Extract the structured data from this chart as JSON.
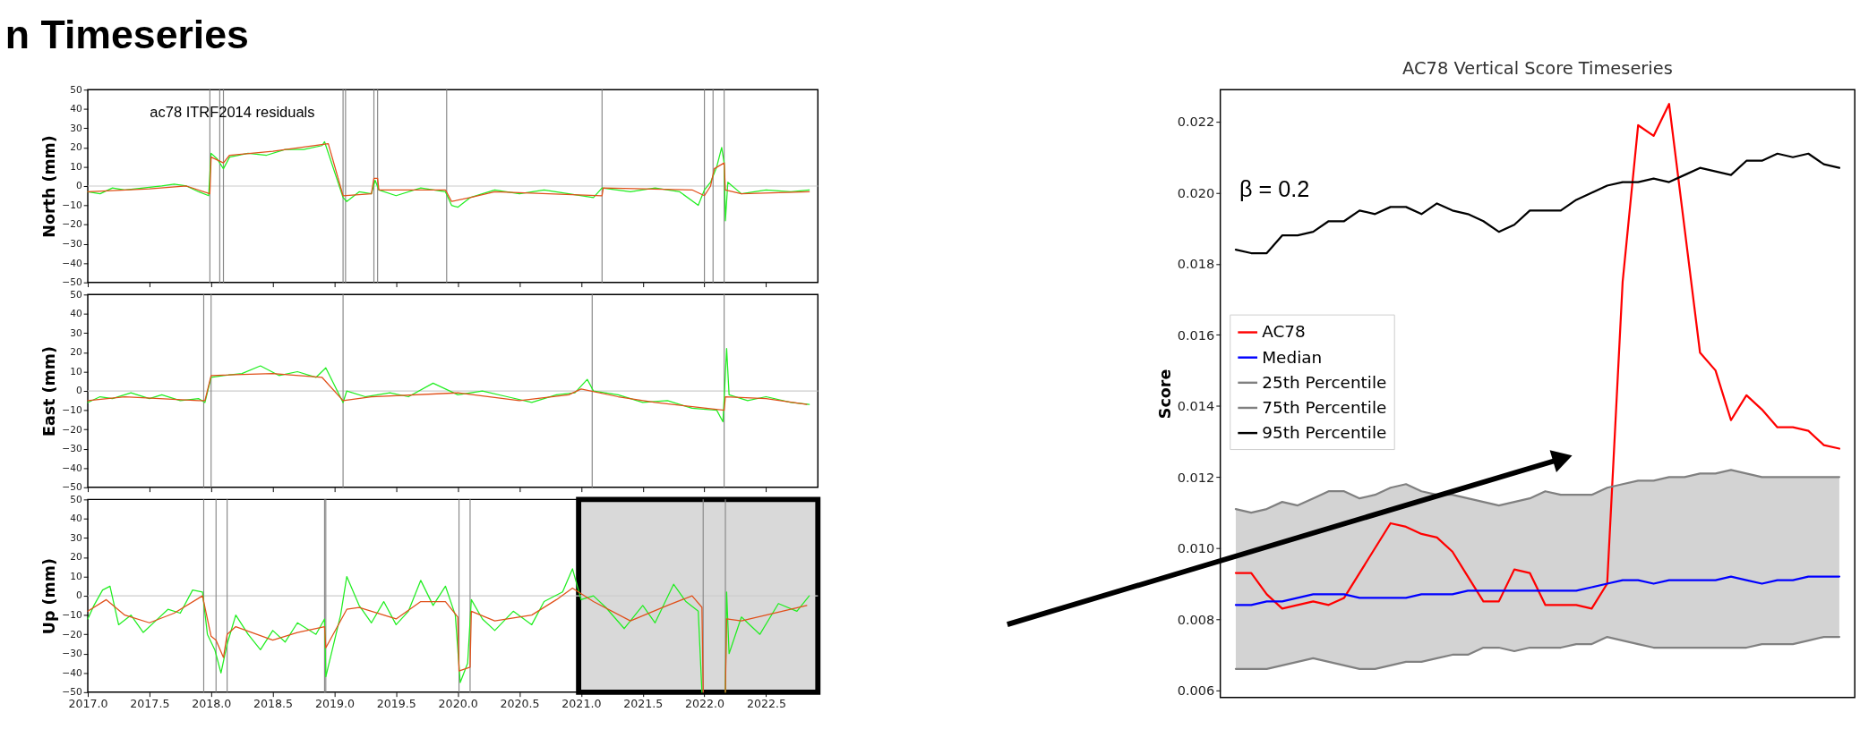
{
  "chart_data": [
    {
      "type": "line",
      "ylabel": "North (mm)",
      "annotations": [
        "n Timeseries",
        "ac78  ITRF2014 residuals"
      ],
      "xlim": [
        2017.0,
        2022.92
      ],
      "xticks": [
        {
          "value": 2017.0,
          "label": null
        },
        {
          "value": 2017.5,
          "label": null
        },
        {
          "value": 2018.0,
          "label": null
        },
        {
          "value": 2018.5,
          "label": null
        },
        {
          "value": 2019.0,
          "label": null
        },
        {
          "value": 2019.5,
          "label": null
        },
        {
          "value": 2020.0,
          "label": null
        },
        {
          "value": 2020.5,
          "label": null
        },
        {
          "value": 2021.0,
          "label": null
        },
        {
          "value": 2021.5,
          "label": null
        },
        {
          "value": 2022.0,
          "label": null
        },
        {
          "value": 2022.5,
          "label": null
        }
      ],
      "ylim": [
        -50,
        50
      ],
      "yticks": [
        -50,
        -40,
        -30,
        -20,
        -10,
        0,
        10,
        20,
        30,
        40,
        50
      ],
      "tick_labels": "y",
      "grid": false,
      "legend": false,
      "line_style": "solid",
      "marker": "none",
      "ref_lines": [
        {
          "axis": "y",
          "value": 0,
          "color": "#cccccc"
        },
        {
          "axis": "x",
          "value": 2017.99,
          "color": "#888888"
        },
        {
          "axis": "x",
          "value": 2018.07,
          "color": "#888888"
        },
        {
          "axis": "x",
          "value": 2018.1,
          "color": "#888888"
        },
        {
          "axis": "x",
          "value": 2019.07,
          "color": "#888888"
        },
        {
          "axis": "x",
          "value": 2019.09,
          "color": "#888888"
        },
        {
          "axis": "x",
          "value": 2019.32,
          "color": "#888888"
        },
        {
          "axis": "x",
          "value": 2019.35,
          "color": "#888888"
        },
        {
          "axis": "x",
          "value": 2019.91,
          "color": "#888888"
        },
        {
          "axis": "x",
          "value": 2021.17,
          "color": "#888888"
        },
        {
          "axis": "x",
          "value": 2022.0,
          "color": "#888888"
        },
        {
          "axis": "x",
          "value": 2022.07,
          "color": "#888888"
        },
        {
          "axis": "x",
          "value": 2022.16,
          "color": "#888888"
        }
      ],
      "series": [
        {
          "color": "#22ee22",
          "x": [
            2017.0,
            2017.1,
            2017.2,
            2017.3,
            2017.45,
            2017.6,
            2017.7,
            2017.8,
            2017.9,
            2017.98,
            2018.0,
            2018.05,
            2018.1,
            2018.15,
            2018.3,
            2018.45,
            2018.6,
            2018.75,
            2018.9,
            2018.92,
            2019.07,
            2019.1,
            2019.2,
            2019.3,
            2019.33,
            2019.36,
            2019.5,
            2019.7,
            2019.9,
            2019.95,
            2020.0,
            2020.1,
            2020.3,
            2020.5,
            2020.7,
            2020.9,
            2021.1,
            2021.17,
            2021.4,
            2021.6,
            2021.8,
            2021.95,
            2022.0,
            2022.05,
            2022.1,
            2022.14,
            2022.16,
            2022.17,
            2022.19,
            2022.3,
            2022.5,
            2022.7,
            2022.85
          ],
          "values": [
            -3,
            -4,
            -1,
            -2,
            -1,
            0,
            1,
            0,
            -3,
            -5,
            17,
            14,
            9,
            15,
            17,
            16,
            19,
            19,
            21,
            23,
            -6,
            -8,
            -3,
            -4,
            3,
            -2,
            -5,
            -1,
            -3,
            -10,
            -11,
            -6,
            -2,
            -4,
            -2,
            -4,
            -6,
            -1,
            -3,
            -1,
            -3,
            -10,
            -2,
            2,
            10,
            20,
            12,
            -18,
            2,
            -4,
            -2,
            -3,
            -2
          ]
        },
        {
          "color": "#e0501a",
          "x": [
            2017.0,
            2017.5,
            2017.8,
            2017.99,
            2018.0,
            2018.1,
            2018.15,
            2018.5,
            2018.95,
            2019.07,
            2019.3,
            2019.32,
            2019.35,
            2019.36,
            2019.9,
            2019.95,
            2020.1,
            2020.3,
            2021.17,
            2021.18,
            2021.9,
            2022.0,
            2022.05,
            2022.08,
            2022.16,
            2022.17,
            2022.3,
            2022.85
          ],
          "values": [
            -3,
            -1.5,
            0,
            -4,
            15,
            12,
            16,
            18,
            22,
            -5,
            -4,
            4,
            4,
            -2,
            -2,
            -8,
            -6,
            -3,
            -5,
            -1,
            -2,
            -5,
            0,
            9,
            12,
            -2,
            -4,
            -3
          ]
        }
      ]
    },
    {
      "type": "line",
      "ylabel": "East (mm)",
      "xlim": [
        2017.0,
        2022.92
      ],
      "xticks": [
        {
          "value": 2017.0,
          "label": null
        },
        {
          "value": 2017.5,
          "label": null
        },
        {
          "value": 2018.0,
          "label": null
        },
        {
          "value": 2018.5,
          "label": null
        },
        {
          "value": 2019.0,
          "label": null
        },
        {
          "value": 2019.5,
          "label": null
        },
        {
          "value": 2020.0,
          "label": null
        },
        {
          "value": 2020.5,
          "label": null
        },
        {
          "value": 2021.0,
          "label": null
        },
        {
          "value": 2021.5,
          "label": null
        },
        {
          "value": 2022.0,
          "label": null
        },
        {
          "value": 2022.5,
          "label": null
        }
      ],
      "ylim": [
        -50,
        50
      ],
      "yticks": [
        -50,
        -40,
        -30,
        -20,
        -10,
        0,
        10,
        20,
        30,
        40,
        50
      ],
      "tick_labels": "y",
      "grid": false,
      "legend": false,
      "line_style": "solid",
      "marker": "none",
      "ref_lines": [
        {
          "axis": "y",
          "value": 0,
          "color": "#cccccc"
        },
        {
          "axis": "x",
          "value": 2017.94,
          "color": "#888888"
        },
        {
          "axis": "x",
          "value": 2018.0,
          "color": "#888888"
        },
        {
          "axis": "x",
          "value": 2019.07,
          "color": "#888888"
        },
        {
          "axis": "x",
          "value": 2021.09,
          "color": "#888888"
        },
        {
          "axis": "x",
          "value": 2022.16,
          "color": "#888888"
        }
      ],
      "series": [
        {
          "color": "#22ee22",
          "x": [
            2017.0,
            2017.1,
            2017.2,
            2017.35,
            2017.5,
            2017.6,
            2017.75,
            2017.9,
            2017.95,
            2018.0,
            2018.1,
            2018.25,
            2018.4,
            2018.55,
            2018.7,
            2018.85,
            2018.93,
            2019.07,
            2019.1,
            2019.25,
            2019.45,
            2019.6,
            2019.8,
            2020.0,
            2020.2,
            2020.4,
            2020.6,
            2020.8,
            2020.95,
            2021.05,
            2021.1,
            2021.3,
            2021.5,
            2021.7,
            2021.9,
            2022.1,
            2022.15,
            2022.16,
            2022.18,
            2022.2,
            2022.35,
            2022.5,
            2022.7,
            2022.85
          ],
          "values": [
            -6,
            -3,
            -4,
            -1,
            -4,
            -2,
            -5,
            -4,
            -6,
            7,
            8,
            9,
            13,
            8,
            10,
            7,
            12,
            -6,
            0,
            -3,
            -1,
            -3,
            4,
            -2,
            0,
            -3,
            -6,
            -2,
            -1,
            6,
            0,
            -2,
            -6,
            -5,
            -9,
            -10,
            -16,
            -4,
            22,
            -2,
            -5,
            -3,
            -6,
            -7
          ]
        },
        {
          "color": "#e0501a",
          "x": [
            2017.0,
            2017.3,
            2017.9,
            2017.95,
            2018.0,
            2018.5,
            2018.9,
            2019.07,
            2019.3,
            2020.0,
            2020.5,
            2020.9,
            2021.0,
            2021.3,
            2021.6,
            2022.16,
            2022.17,
            2022.5,
            2022.83
          ],
          "values": [
            -5,
            -3,
            -5,
            -5,
            8,
            9,
            7,
            -5,
            -3,
            -1,
            -5,
            -2,
            1,
            -3,
            -6,
            -10,
            -3,
            -4,
            -7
          ]
        }
      ]
    },
    {
      "type": "line",
      "ylabel": "Up (mm)",
      "xlim": [
        2017.0,
        2022.92
      ],
      "xticks": [
        {
          "value": 2017.0,
          "label": "2017.0"
        },
        {
          "value": 2017.5,
          "label": "2017.5"
        },
        {
          "value": 2018.0,
          "label": "2018.0"
        },
        {
          "value": 2018.5,
          "label": "2018.5"
        },
        {
          "value": 2019.0,
          "label": "2019.0"
        },
        {
          "value": 2019.5,
          "label": "2019.5"
        },
        {
          "value": 2020.0,
          "label": "2020.0"
        },
        {
          "value": 2020.5,
          "label": "2020.5"
        },
        {
          "value": 2021.0,
          "label": "2021.0"
        },
        {
          "value": 2021.5,
          "label": "2021.5"
        },
        {
          "value": 2022.0,
          "label": "2022.0"
        },
        {
          "value": 2022.5,
          "label": "2022.5"
        }
      ],
      "ylim": [
        -50,
        50
      ],
      "yticks": [
        -50,
        -40,
        -30,
        -20,
        -10,
        0,
        10,
        20,
        30,
        40,
        50
      ],
      "grid": false,
      "legend": false,
      "line_style": "solid",
      "marker": "none",
      "bands": [
        {
          "axis": "x",
          "from": 2020.98,
          "to": 2022.92,
          "color": "#d9d9d9"
        }
      ],
      "ref_lines": [
        {
          "axis": "y",
          "value": 0,
          "color": "#cccccc"
        },
        {
          "axis": "x",
          "value": 2017.94,
          "color": "#888888"
        },
        {
          "axis": "x",
          "value": 2018.04,
          "color": "#888888"
        },
        {
          "axis": "x",
          "value": 2018.13,
          "color": "#888888"
        },
        {
          "axis": "x",
          "value": 2018.92,
          "color": "#888888"
        },
        {
          "axis": "x",
          "value": 2018.93,
          "color": "#888888"
        },
        {
          "axis": "x",
          "value": 2020.01,
          "color": "#888888"
        },
        {
          "axis": "x",
          "value": 2020.1,
          "color": "#888888"
        },
        {
          "axis": "x",
          "value": 2021.99,
          "color": "#888888"
        },
        {
          "axis": "x",
          "value": 2022.17,
          "color": "#888888"
        }
      ],
      "series": [
        {
          "color": "#22ee22",
          "x": [
            2017.0,
            2017.05,
            2017.12,
            2017.18,
            2017.25,
            2017.35,
            2017.45,
            2017.55,
            2017.65,
            2017.75,
            2017.85,
            2017.93,
            2017.97,
            2018.03,
            2018.08,
            2018.13,
            2018.2,
            2018.3,
            2018.4,
            2018.5,
            2018.6,
            2018.7,
            2018.85,
            2018.92,
            2018.93,
            2019.05,
            2019.1,
            2019.2,
            2019.3,
            2019.4,
            2019.5,
            2019.6,
            2019.7,
            2019.8,
            2019.9,
            2019.98,
            2020.02,
            2020.08,
            2020.11,
            2020.2,
            2020.3,
            2020.45,
            2020.6,
            2020.7,
            2020.85,
            2020.93,
            2021.0,
            2021.1,
            2021.2,
            2021.35,
            2021.5,
            2021.6,
            2021.75,
            2021.85,
            2021.95,
            2021.98,
            2022.07,
            2022.17,
            2022.18,
            2022.2,
            2022.3,
            2022.45,
            2022.6,
            2022.75,
            2022.85
          ],
          "values": [
            -12,
            -5,
            3,
            5,
            -15,
            -10,
            -19,
            -13,
            -7,
            -9,
            3,
            2,
            -20,
            -28,
            -40,
            -25,
            -10,
            -20,
            -28,
            -18,
            -24,
            -14,
            -20,
            -12,
            -42,
            -10,
            10,
            -5,
            -14,
            -3,
            -15,
            -8,
            8,
            -5,
            5,
            -10,
            -45,
            -35,
            -2,
            -12,
            -18,
            -8,
            -15,
            -3,
            2,
            14,
            -2,
            0,
            -6,
            -17,
            -5,
            -14,
            6,
            -3,
            -8,
            -50,
            null,
            -50,
            2,
            -30,
            -11,
            -20,
            -4,
            -8,
            0
          ]
        },
        {
          "color": "#e0501a",
          "x": [
            2017.0,
            2017.15,
            2017.3,
            2017.5,
            2017.7,
            2017.93,
            2018.0,
            2018.04,
            2018.1,
            2018.13,
            2018.2,
            2018.5,
            2018.7,
            2018.92,
            2018.93,
            2019.1,
            2019.2,
            2019.5,
            2019.7,
            2019.9,
            2020.0,
            2020.01,
            2020.1,
            2020.11,
            2020.3,
            2020.6,
            2020.8,
            2020.93,
            2021.1,
            2021.4,
            2021.7,
            2021.9,
            2021.98,
            2021.99,
            2022.08,
            2022.17,
            2022.18,
            2022.3,
            2022.5,
            2022.83
          ],
          "values": [
            -8,
            -2,
            -10,
            -14,
            -9,
            0,
            -21,
            -23,
            -32,
            -20,
            -16,
            -23,
            -19,
            -16,
            -27,
            -7,
            -6,
            -12,
            -3,
            -3,
            -11,
            -39,
            -37,
            -8,
            -13,
            -10,
            -2,
            4,
            -3,
            -13,
            -5,
            0,
            -6,
            -50,
            null,
            -50,
            -12,
            -13,
            -10,
            -5
          ]
        }
      ]
    },
    {
      "type": "line",
      "title": "AC78 Vertical Score Timeseries",
      "ylabel": "Score",
      "annotations": [
        "β = 0.2"
      ],
      "categories": [
        null,
        null,
        null,
        null,
        null,
        null,
        null,
        null,
        null,
        null,
        null,
        null,
        null,
        null,
        null,
        null,
        null,
        null,
        null,
        null,
        null,
        null,
        null,
        null,
        null,
        null,
        null,
        null,
        null,
        null,
        null,
        null,
        null,
        null,
        null,
        null,
        null,
        null,
        null,
        null
      ],
      "ylim": [
        0.0058,
        0.0229
      ],
      "yticks": [
        0.006,
        0.008,
        {
          "value": 0.01,
          "label": "0.010"
        },
        0.012,
        0.014,
        0.016,
        0.018,
        {
          "value": 0.02,
          "label": "0.020"
        },
        0.022
      ],
      "tick_labels": "y",
      "grid": false,
      "legend": "left",
      "line_style": "solid",
      "marker": "none",
      "series": [
        {
          "name": "AC78",
          "color": "#ff0000",
          "values": [
            0.0093,
            0.0093,
            0.0087,
            0.0083,
            0.0084,
            0.0085,
            0.0084,
            0.0086,
            0.0093,
            0.01,
            0.0107,
            0.0106,
            0.0104,
            0.0103,
            0.0099,
            0.0092,
            0.0085,
            0.0085,
            0.0094,
            0.0093,
            0.0084,
            0.0084,
            0.0084,
            0.0083,
            0.009,
            0.0175,
            0.0219,
            0.0216,
            0.0225,
            0.019,
            0.0155,
            0.015,
            0.0136,
            0.0143,
            0.0139,
            0.0134,
            0.0134,
            0.0133,
            0.0129,
            0.0128
          ]
        },
        {
          "name": "Median",
          "color": "#0000ff",
          "values": [
            0.0084,
            0.0084,
            0.0085,
            0.0085,
            0.0086,
            0.0087,
            0.0087,
            0.0087,
            0.0086,
            0.0086,
            0.0086,
            0.0086,
            0.0087,
            0.0087,
            0.0087,
            0.0088,
            0.0088,
            0.0088,
            0.0088,
            0.0088,
            0.0088,
            0.0088,
            0.0088,
            0.0089,
            0.009,
            0.0091,
            0.0091,
            0.009,
            0.0091,
            0.0091,
            0.0091,
            0.0091,
            0.0092,
            0.0091,
            0.009,
            0.0091,
            0.0091,
            0.0092,
            0.0092,
            0.0092
          ],
          "lower": [
            0.0066,
            0.0066,
            0.0066,
            0.0067,
            0.0068,
            0.0069,
            0.0068,
            0.0067,
            0.0066,
            0.0066,
            0.0067,
            0.0068,
            0.0068,
            0.0069,
            0.007,
            0.007,
            0.0072,
            0.0072,
            0.0071,
            0.0072,
            0.0072,
            0.0072,
            0.0073,
            0.0073,
            0.0075,
            0.0074,
            0.0073,
            0.0072,
            0.0072,
            0.0072,
            0.0072,
            0.0072,
            0.0072,
            0.0072,
            0.0073,
            0.0073,
            0.0073,
            0.0074,
            0.0075,
            0.0075
          ],
          "upper": [
            0.0111,
            0.011,
            0.0111,
            0.0113,
            0.0112,
            0.0114,
            0.0116,
            0.0116,
            0.0114,
            0.0115,
            0.0117,
            0.0118,
            0.0116,
            0.0115,
            0.0115,
            0.0114,
            0.0113,
            0.0112,
            0.0113,
            0.0114,
            0.0116,
            0.0115,
            0.0115,
            0.0115,
            0.0117,
            0.0118,
            0.0119,
            0.0119,
            0.012,
            0.012,
            0.0121,
            0.0121,
            0.0122,
            0.0121,
            0.012,
            0.012,
            0.012,
            0.012,
            0.012,
            0.012
          ]
        },
        {
          "name": "25th Percentile",
          "color": "#808080",
          "values": [
            0.0066,
            0.0066,
            0.0066,
            0.0067,
            0.0068,
            0.0069,
            0.0068,
            0.0067,
            0.0066,
            0.0066,
            0.0067,
            0.0068,
            0.0068,
            0.0069,
            0.007,
            0.007,
            0.0072,
            0.0072,
            0.0071,
            0.0072,
            0.0072,
            0.0072,
            0.0073,
            0.0073,
            0.0075,
            0.0074,
            0.0073,
            0.0072,
            0.0072,
            0.0072,
            0.0072,
            0.0072,
            0.0072,
            0.0072,
            0.0073,
            0.0073,
            0.0073,
            0.0074,
            0.0075,
            0.0075
          ]
        },
        {
          "name": "75th Percentile",
          "color": "#808080",
          "values": [
            0.0111,
            0.011,
            0.0111,
            0.0113,
            0.0112,
            0.0114,
            0.0116,
            0.0116,
            0.0114,
            0.0115,
            0.0117,
            0.0118,
            0.0116,
            0.0115,
            0.0115,
            0.0114,
            0.0113,
            0.0112,
            0.0113,
            0.0114,
            0.0116,
            0.0115,
            0.0115,
            0.0115,
            0.0117,
            0.0118,
            0.0119,
            0.0119,
            0.012,
            0.012,
            0.0121,
            0.0121,
            0.0122,
            0.0121,
            0.012,
            0.012,
            0.012,
            0.012,
            0.012,
            0.012
          ]
        },
        {
          "name": "95th Percentile",
          "color": "#000000",
          "values": [
            0.0184,
            0.0183,
            0.0183,
            0.0188,
            0.0188,
            0.0189,
            0.0192,
            0.0192,
            0.0195,
            0.0194,
            0.0196,
            0.0196,
            0.0194,
            0.0197,
            0.0195,
            0.0194,
            0.0192,
            0.0189,
            0.0191,
            0.0195,
            0.0195,
            0.0195,
            0.0198,
            0.02,
            0.0202,
            0.0203,
            0.0203,
            0.0204,
            0.0203,
            0.0205,
            0.0207,
            0.0206,
            0.0205,
            0.0209,
            0.0209,
            0.0211,
            0.021,
            0.0211,
            0.0208,
            0.0207
          ]
        }
      ]
    }
  ]
}
